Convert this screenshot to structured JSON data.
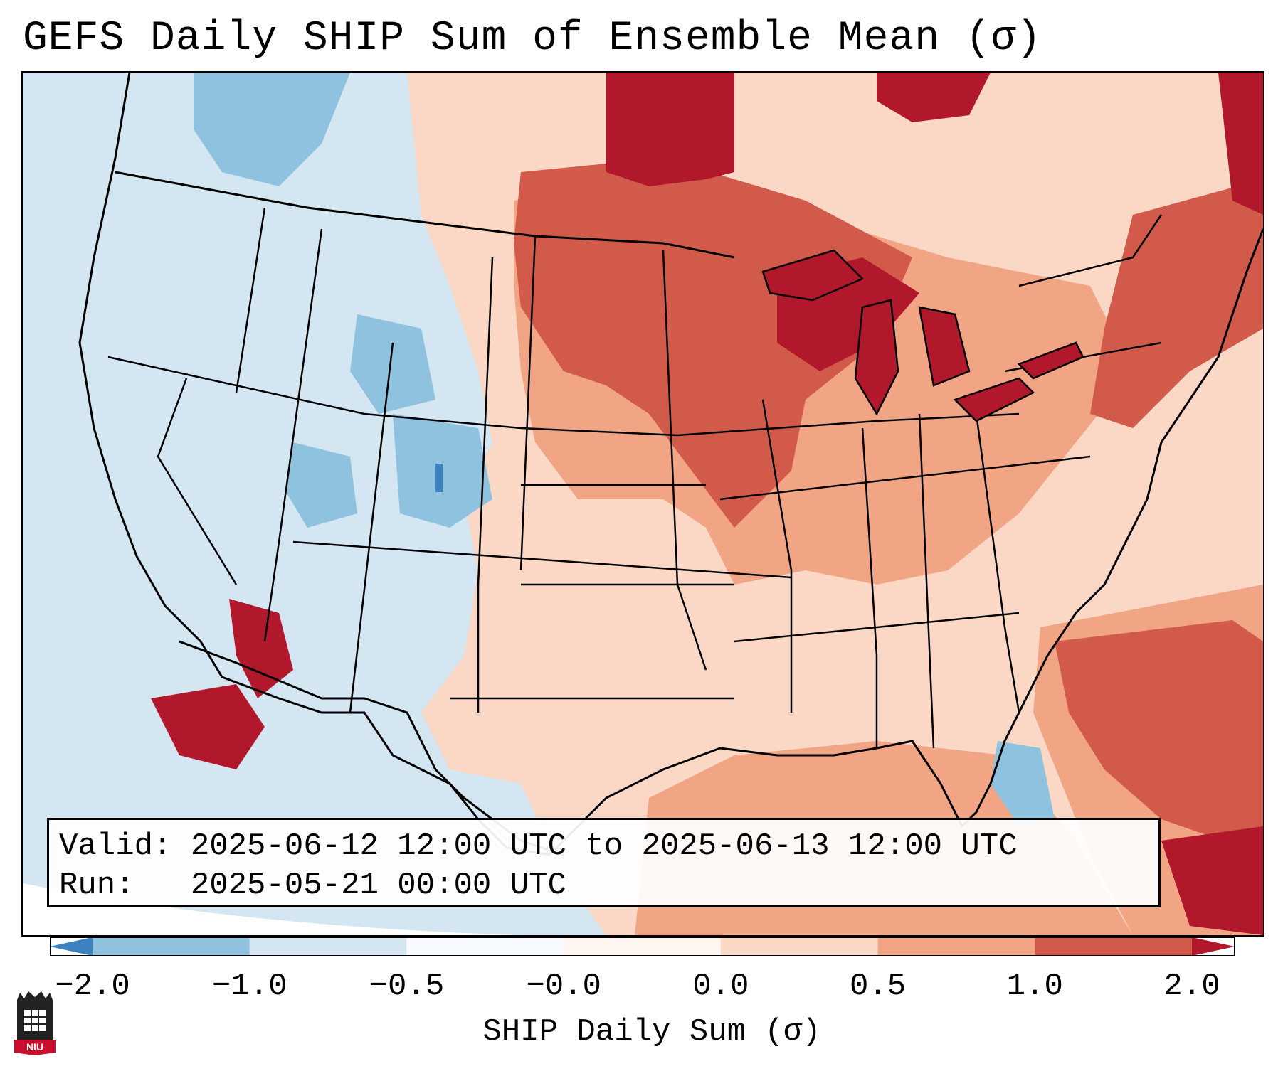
{
  "title": "GEFS Daily SHIP Sum of Ensemble Mean (σ)",
  "info": {
    "valid": "Valid: 2025-06-12 12:00 UTC to 2025-06-13 12:00 UTC",
    "run": "Run:   2025-05-21 00:00 UTC"
  },
  "colorbar": {
    "label": "SHIP Daily Sum (σ)",
    "ticks": [
      "−2.0",
      "−1.0",
      "−0.5",
      "−0.0",
      "0.0",
      "0.5",
      "1.0",
      "2.0"
    ],
    "colors": [
      "#3c82c0",
      "#8fc2df",
      "#d3e6f1",
      "#f7fbff",
      "#fff5f0",
      "#fbd8c5",
      "#f2a585",
      "#d15a4a",
      "#b2182b"
    ]
  },
  "map": {
    "projection": "CONUS Lambert",
    "colors": {
      "neg2": "#3c82c0",
      "neg1": "#8fc2df",
      "neg05": "#d3e6f1",
      "zero": "#ffffff",
      "pos05": "#fbd8c5",
      "pos1": "#f2a585",
      "pos15": "#d15a4a",
      "pos2": "#b2182b",
      "outline": "#000000"
    }
  },
  "logo": {
    "text": "NIU"
  }
}
